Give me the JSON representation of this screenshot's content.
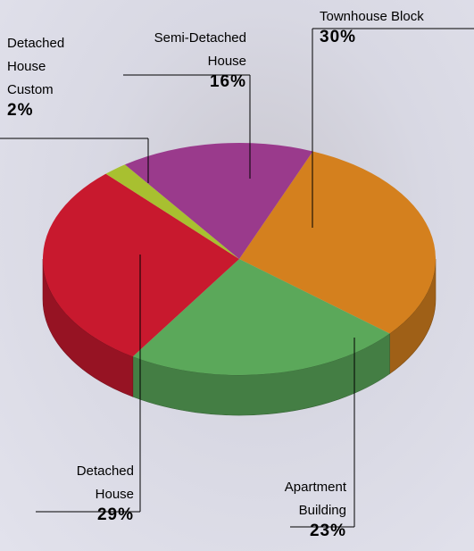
{
  "chart_data": {
    "type": "pie3d",
    "categories": [
      "Townhouse Block",
      "Apartment Building",
      "Detached House",
      "Detached House Custom",
      "Semi-Detached House"
    ],
    "values": [
      30,
      23,
      29,
      2,
      16
    ],
    "value_labels": [
      "30%",
      "23%",
      "29%",
      "2%",
      "16%"
    ],
    "colors": [
      "#d4801e",
      "#5ba85a",
      "#c8192e",
      "#a8c030",
      "#9a3a8c"
    ]
  }
}
